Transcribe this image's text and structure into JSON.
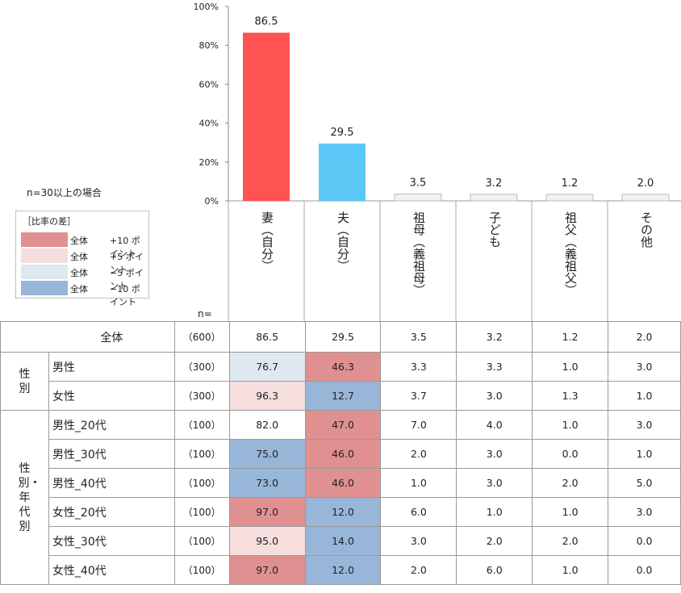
{
  "chart_data": {
    "type": "bar",
    "categories": [
      "妻（自分）",
      "夫（自分）",
      "祖母（義祖母）",
      "子ども",
      "祖父（義祖父）",
      "その他"
    ],
    "values": [
      86.5,
      29.5,
      3.5,
      3.2,
      1.2,
      2.0
    ],
    "value_labels": [
      "86.5",
      "29.5",
      "3.5",
      "3.2",
      "1.2",
      "2.0"
    ],
    "ylim": [
      0,
      100
    ],
    "yticks": [
      "0%",
      "20%",
      "40%",
      "60%",
      "80%",
      "100%"
    ],
    "bar_colors": [
      "#ff5252",
      "#5bc8f5",
      "#f2f2f2",
      "#f2f2f2",
      "#f2f2f2",
      "#f2f2f2"
    ]
  },
  "note": "n=30以上の場合",
  "legend": {
    "title": "［比率の差］",
    "items": [
      {
        "label": "全体",
        "value": "+10 ポイント",
        "color": "#e09090"
      },
      {
        "label": "全体",
        "value": "+5 ポイント",
        "color": "#f6dede"
      },
      {
        "label": "全体",
        "value": "−5 ポイント",
        "color": "#dde8ef"
      },
      {
        "label": "全体",
        "value": "−10 ポイント",
        "color": "#97b6d8"
      }
    ]
  },
  "table": {
    "n_label": "n=",
    "total": {
      "label": "全体",
      "n": "（600）",
      "values": [
        "86.5",
        "29.5",
        "3.5",
        "3.2",
        "1.2",
        "2.0"
      ]
    },
    "groups": [
      {
        "label": "性別",
        "rows": [
          {
            "label": "男性",
            "n": "（300）",
            "values": [
              "76.7",
              "46.3",
              "3.3",
              "3.3",
              "1.0",
              "3.0"
            ],
            "fills": [
              "#dde8ef",
              "#e09090",
              "",
              "",
              "",
              ""
            ]
          },
          {
            "label": "女性",
            "n": "（300）",
            "values": [
              "96.3",
              "12.7",
              "3.7",
              "3.0",
              "1.3",
              "1.0"
            ],
            "fills": [
              "#f6dede",
              "#97b6d8",
              "",
              "",
              "",
              ""
            ]
          }
        ]
      },
      {
        "label": "性別・年代別",
        "rows": [
          {
            "label": "男性_20代",
            "n": "（100）",
            "values": [
              "82.0",
              "47.0",
              "7.0",
              "4.0",
              "1.0",
              "3.0"
            ],
            "fills": [
              "",
              "#e09090",
              "",
              "",
              "",
              ""
            ]
          },
          {
            "label": "男性_30代",
            "n": "（100）",
            "values": [
              "75.0",
              "46.0",
              "2.0",
              "3.0",
              "0.0",
              "1.0"
            ],
            "fills": [
              "#97b6d8",
              "#e09090",
              "",
              "",
              "",
              ""
            ]
          },
          {
            "label": "男性_40代",
            "n": "（100）",
            "values": [
              "73.0",
              "46.0",
              "1.0",
              "3.0",
              "2.0",
              "5.0"
            ],
            "fills": [
              "#97b6d8",
              "#e09090",
              "",
              "",
              "",
              ""
            ]
          },
          {
            "label": "女性_20代",
            "n": "（100）",
            "values": [
              "97.0",
              "12.0",
              "6.0",
              "1.0",
              "1.0",
              "3.0"
            ],
            "fills": [
              "#e09090",
              "#97b6d8",
              "",
              "",
              "",
              ""
            ]
          },
          {
            "label": "女性_30代",
            "n": "（100）",
            "values": [
              "95.0",
              "14.0",
              "3.0",
              "2.0",
              "2.0",
              "0.0"
            ],
            "fills": [
              "#f6dede",
              "#97b6d8",
              "",
              "",
              "",
              ""
            ]
          },
          {
            "label": "女性_40代",
            "n": "（100）",
            "values": [
              "97.0",
              "12.0",
              "2.0",
              "6.0",
              "1.0",
              "0.0"
            ],
            "fills": [
              "#e09090",
              "#97b6d8",
              "",
              "",
              "",
              ""
            ]
          }
        ]
      }
    ]
  }
}
